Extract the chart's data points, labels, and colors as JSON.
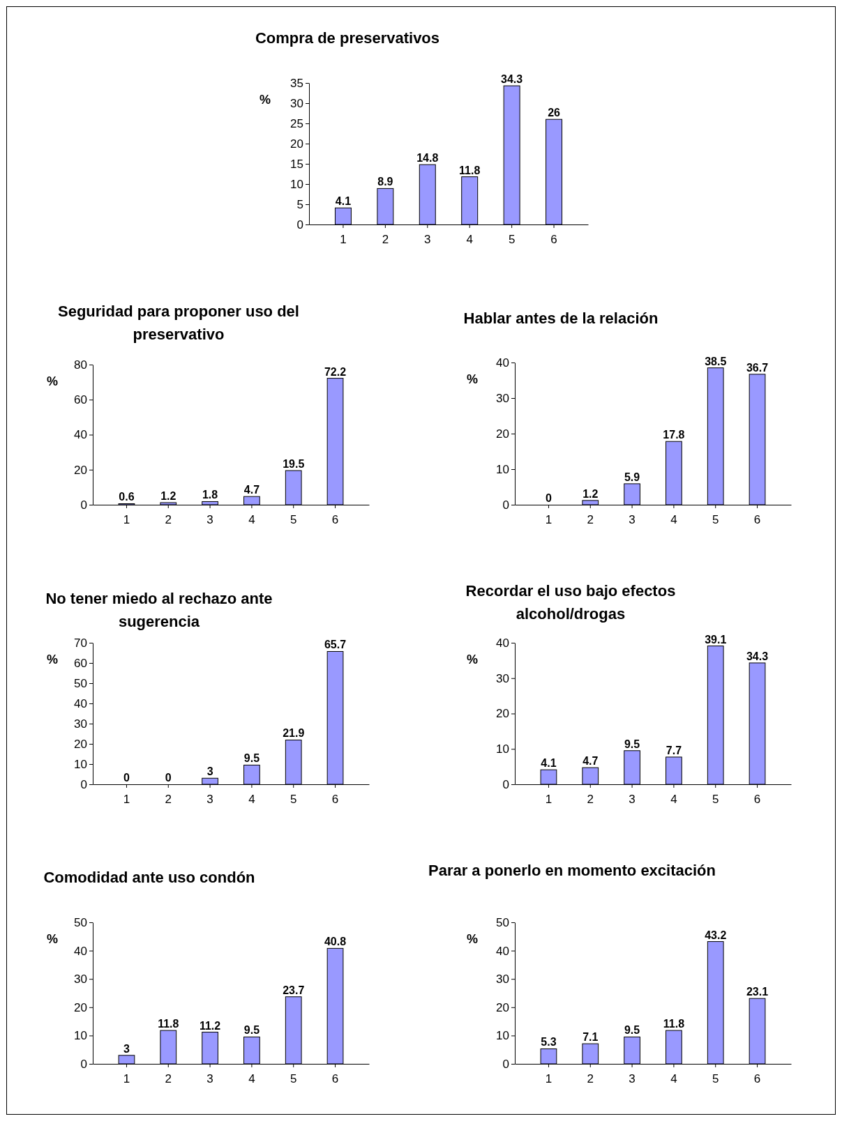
{
  "chart_data": [
    {
      "type": "bar",
      "title": "Compra de preservativos",
      "ylabel": "%",
      "categories": [
        "1",
        "2",
        "3",
        "4",
        "5",
        "6"
      ],
      "values": [
        4.1,
        8.9,
        14.8,
        11.8,
        34.3,
        26
      ],
      "color": "#9999ff",
      "ylim": [
        0,
        35
      ],
      "yticks": [
        0,
        5,
        10,
        15,
        20,
        25,
        30,
        35
      ],
      "data_labels": true
    },
    {
      "type": "bar",
      "title": "Seguridad para proponer uso del preservativo",
      "ylabel": "%",
      "categories": [
        "1",
        "2",
        "3",
        "4",
        "5",
        "6"
      ],
      "values": [
        0.6,
        1.2,
        1.8,
        4.7,
        19.5,
        72.2
      ],
      "color": "#9999ff",
      "ylim": [
        0,
        80
      ],
      "yticks": [
        0,
        20,
        40,
        60,
        80
      ],
      "data_labels": true
    },
    {
      "type": "bar",
      "title": "Hablar antes de la relación",
      "ylabel": "%",
      "categories": [
        "1",
        "2",
        "3",
        "4",
        "5",
        "6"
      ],
      "values": [
        0,
        1.2,
        5.9,
        17.8,
        38.5,
        36.7
      ],
      "color": "#9999ff",
      "ylim": [
        0,
        40
      ],
      "yticks": [
        0,
        10,
        20,
        30,
        40
      ],
      "data_labels": true
    },
    {
      "type": "bar",
      "title": "No tener miedo al rechazo ante sugerencia",
      "ylabel": "%",
      "categories": [
        "1",
        "2",
        "3",
        "4",
        "5",
        "6"
      ],
      "values": [
        0,
        0,
        3,
        9.5,
        21.9,
        65.7
      ],
      "color": "#9999ff",
      "ylim": [
        0,
        70
      ],
      "yticks": [
        0,
        10,
        20,
        30,
        40,
        50,
        60,
        70
      ],
      "data_labels": true
    },
    {
      "type": "bar",
      "title": "Recordar el uso bajo efectos alcohol/drogas",
      "ylabel": "%",
      "categories": [
        "1",
        "2",
        "3",
        "4",
        "5",
        "6"
      ],
      "values": [
        4.1,
        4.7,
        9.5,
        7.7,
        39.1,
        34.3
      ],
      "color": "#9999ff",
      "ylim": [
        0,
        40
      ],
      "yticks": [
        0,
        10,
        20,
        30,
        40
      ],
      "data_labels": true
    },
    {
      "type": "bar",
      "title": "Comodidad ante uso condón",
      "ylabel": "%",
      "categories": [
        "1",
        "2",
        "3",
        "4",
        "5",
        "6"
      ],
      "values": [
        3,
        11.8,
        11.2,
        9.5,
        23.7,
        40.8
      ],
      "color": "#9999ff",
      "ylim": [
        0,
        50
      ],
      "yticks": [
        0,
        10,
        20,
        30,
        40,
        50
      ],
      "data_labels": true
    },
    {
      "type": "bar",
      "title": "Parar a ponerlo en momento excitación",
      "ylabel": "%",
      "categories": [
        "1",
        "2",
        "3",
        "4",
        "5",
        "6"
      ],
      "values": [
        5.3,
        7.1,
        9.5,
        11.8,
        43.2,
        23.1
      ],
      "color": "#9999ff",
      "ylim": [
        0,
        50
      ],
      "yticks": [
        0,
        10,
        20,
        30,
        40,
        50
      ],
      "data_labels": true
    }
  ]
}
